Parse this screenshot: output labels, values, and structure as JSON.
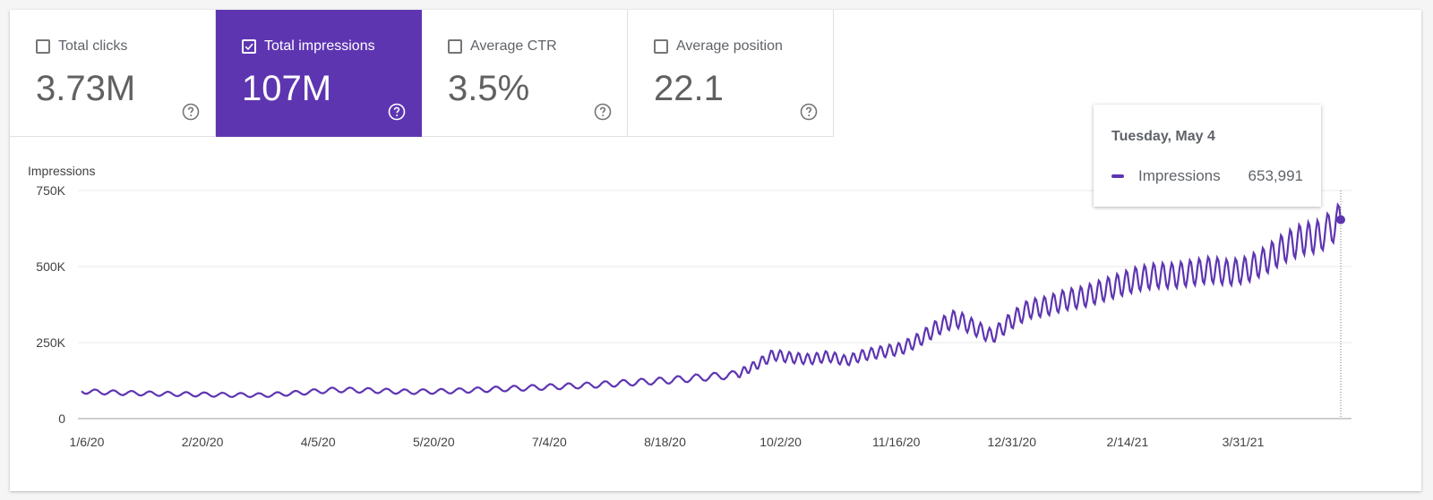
{
  "metrics": [
    {
      "label": "Total clicks",
      "value": "3.73M",
      "checked": false,
      "color": "#ffffff"
    },
    {
      "label": "Total impressions",
      "value": "107M",
      "checked": true,
      "color": "#5e35b1"
    },
    {
      "label": "Average CTR",
      "value": "3.5%",
      "checked": false,
      "color": "#ffffff"
    },
    {
      "label": "Average position",
      "value": "22.1",
      "checked": false,
      "color": "#ffffff"
    }
  ],
  "icons": {
    "help": "help-circle-icon",
    "checkbox": "checkbox-icon"
  },
  "tooltip": {
    "title": "Tuesday, May 4",
    "series": "Impressions",
    "value": "653,991"
  },
  "chart_data": {
    "type": "line",
    "ylabel": "Impressions",
    "xlabel": "",
    "ylim": [
      0,
      750000
    ],
    "y_ticks": [
      "0",
      "250K",
      "500K",
      "750K"
    ],
    "y_tick_values": [
      0,
      250000,
      500000,
      750000
    ],
    "x_tick_labels": [
      "1/6/20",
      "2/20/20",
      "4/5/20",
      "5/20/20",
      "7/4/20",
      "8/18/20",
      "10/2/20",
      "11/16/20",
      "12/31/20",
      "2/14/21",
      "3/31/21"
    ],
    "x_range": [
      "2020-01-06",
      "2021-05-04"
    ],
    "grid": true,
    "color": "#5e35b1",
    "series": [
      {
        "name": "Impressions",
        "x": [
          "2020-01-06",
          "2020-01-20",
          "2020-02-03",
          "2020-02-17",
          "2020-03-02",
          "2020-03-16",
          "2020-03-30",
          "2020-04-13",
          "2020-04-27",
          "2020-05-11",
          "2020-05-25",
          "2020-06-08",
          "2020-06-22",
          "2020-07-06",
          "2020-07-20",
          "2020-08-03",
          "2020-08-17",
          "2020-08-31",
          "2020-09-14",
          "2020-09-21",
          "2020-09-28",
          "2020-10-05",
          "2020-10-12",
          "2020-10-19",
          "2020-10-26",
          "2020-11-02",
          "2020-11-09",
          "2020-11-16",
          "2020-11-23",
          "2020-11-30",
          "2020-12-07",
          "2020-12-14",
          "2020-12-21",
          "2020-12-28",
          "2021-01-04",
          "2021-01-11",
          "2021-01-18",
          "2021-01-25",
          "2021-02-01",
          "2021-02-08",
          "2021-02-15",
          "2021-02-22",
          "2021-03-01",
          "2021-03-08",
          "2021-03-15",
          "2021-03-22",
          "2021-03-29",
          "2021-04-05",
          "2021-04-12",
          "2021-04-19",
          "2021-04-26",
          "2021-05-04"
        ],
        "values": [
          90000,
          85000,
          82000,
          80000,
          78000,
          77000,
          85000,
          95000,
          92000,
          88000,
          90000,
          95000,
          100000,
          105000,
          110000,
          118000,
          125000,
          135000,
          145000,
          175000,
          210000,
          200000,
          195000,
          205000,
          190000,
          210000,
          220000,
          230000,
          260000,
          300000,
          330000,
          300000,
          270000,
          320000,
          360000,
          370000,
          390000,
          400000,
          420000,
          440000,
          460000,
          470000,
          470000,
          480000,
          490000,
          480000,
          490000,
          520000,
          560000,
          590000,
          600000,
          653991
        ]
      }
    ]
  }
}
